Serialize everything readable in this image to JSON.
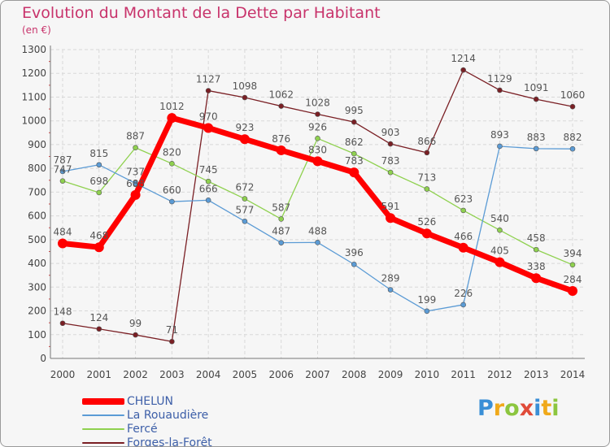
{
  "header": {
    "title": "Evolution du Montant de la Dette par Habitant",
    "subtitle": "(en €)"
  },
  "logo": {
    "text": "Proxiti",
    "colors": [
      "#3a8fd6",
      "#f0a91a",
      "#8cc63f",
      "#e04b39",
      "#3a8fd6",
      "#f0a91a",
      "#8cc63f"
    ]
  },
  "chart_data": {
    "type": "line",
    "title": "Evolution du Montant de la Dette par Habitant",
    "subtitle": "(en €)",
    "xlabel": "",
    "ylabel": "",
    "ylim": [
      0,
      1300
    ],
    "yticks": [
      0,
      100,
      200,
      300,
      400,
      500,
      600,
      700,
      800,
      900,
      1000,
      1100,
      1200,
      1300
    ],
    "grid": true,
    "legend_position": "bottom-left",
    "x": [
      "2000",
      "2001",
      "2002",
      "2003",
      "2004",
      "2005",
      "2006",
      "2007",
      "2008",
      "2009",
      "2010",
      "2011",
      "2012",
      "2013",
      "2014"
    ],
    "series": [
      {
        "name": "CHELUN",
        "color": "#ff0000",
        "values": [
          484,
          468,
          688,
          1012,
          970,
          923,
          876,
          830,
          783,
          591,
          526,
          466,
          405,
          338,
          284
        ],
        "labels": [
          "484",
          "468",
          "688",
          "1012",
          "970",
          "923",
          "876",
          "830",
          "783",
          "591",
          "526",
          "466",
          "405",
          "338",
          "284"
        ]
      },
      {
        "name": "La Rouaudière",
        "color": "#5b9bd5",
        "values": [
          787,
          815,
          737,
          660,
          666,
          577,
          487,
          488,
          396,
          289,
          199,
          226,
          893,
          883,
          882
        ],
        "labels": [
          "787",
          "815",
          "737",
          "660",
          "666",
          "577",
          "487",
          "488",
          "396",
          "289",
          "199",
          "226",
          "893",
          "883",
          "882"
        ]
      },
      {
        "name": "Fercé",
        "color": "#8fd14f",
        "values": [
          747,
          698,
          887,
          820,
          745,
          672,
          587,
          926,
          862,
          783,
          713,
          623,
          540,
          458,
          394
        ],
        "labels": [
          "747",
          "698",
          "887",
          "820",
          "745",
          "672",
          "587",
          "926",
          "862",
          "783",
          "713",
          "623",
          "540",
          "458",
          "394"
        ]
      },
      {
        "name": "Forges-la-Forêt",
        "color": "#7a1f24",
        "values": [
          148,
          124,
          99,
          71,
          1127,
          1098,
          1062,
          1028,
          995,
          903,
          866,
          1214,
          1129,
          1091,
          1060
        ],
        "labels": [
          "148",
          "124",
          "99",
          "71",
          "1127",
          "1098",
          "1062",
          "1028",
          "995",
          "903",
          "866",
          "1214",
          "1129",
          "1091",
          "1060"
        ]
      }
    ]
  }
}
